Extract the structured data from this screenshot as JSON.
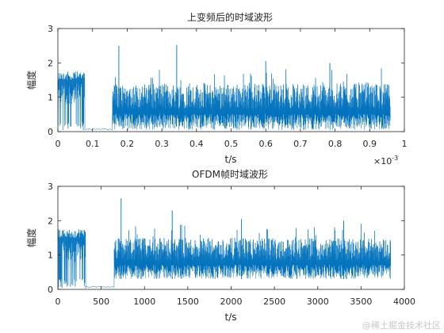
{
  "chart_data": [
    {
      "type": "line",
      "title": "上变频后的时域波形",
      "xlabel": "t/s",
      "ylabel": "幅度",
      "xlim": [
        0,
        1
      ],
      "ylim": [
        0,
        3
      ],
      "x_scale_label": "×10",
      "x_scale_exp": "-3",
      "xticks": [
        "0",
        "0.1",
        "0.2",
        "0.3",
        "0.4",
        "0.5",
        "0.6",
        "0.7",
        "0.8",
        "0.9",
        "1"
      ],
      "yticks": [
        "0",
        "1",
        "2",
        "3"
      ],
      "grid": false,
      "color": "#0072BD",
      "segments": [
        {
          "x_start": 0.0,
          "x_end": 0.078,
          "kind": "preamble",
          "high": 1.75,
          "low": 0.0
        },
        {
          "x_start": 0.078,
          "x_end": 0.158,
          "kind": "gap",
          "level": 0.07
        },
        {
          "x_start": 0.158,
          "x_end": 0.96,
          "kind": "signal",
          "typical_low": 0.05,
          "typical_high": 1.4
        }
      ],
      "peaks": [
        {
          "x": 0.176,
          "y": 2.5
        },
        {
          "x": 0.343,
          "y": 2.52
        },
        {
          "x": 0.6,
          "y": 2.05
        },
        {
          "x": 0.785,
          "y": 2.0
        }
      ]
    },
    {
      "type": "line",
      "title": "OFDM帧时域波形",
      "xlabel": "t/s",
      "ylabel": "幅度",
      "xlim": [
        0,
        4000
      ],
      "ylim": [
        0,
        3
      ],
      "xticks": [
        "0",
        "500",
        "1000",
        "1500",
        "2000",
        "2500",
        "3000",
        "3500",
        "4000"
      ],
      "yticks": [
        "0",
        "1",
        "2",
        "3"
      ],
      "grid": false,
      "color": "#0072BD",
      "segments": [
        {
          "x_start": 0,
          "x_end": 320,
          "kind": "preamble",
          "high": 1.75,
          "low": 0.0
        },
        {
          "x_start": 320,
          "x_end": 650,
          "kind": "gap",
          "level": 0.07
        },
        {
          "x_start": 650,
          "x_end": 3840,
          "kind": "signal",
          "typical_low": 0.3,
          "typical_high": 1.5
        }
      ],
      "peaks": [
        {
          "x": 730,
          "y": 2.65
        },
        {
          "x": 1320,
          "y": 2.3
        },
        {
          "x": 2120,
          "y": 2.05
        },
        {
          "x": 3300,
          "y": 2.0
        }
      ]
    }
  ],
  "watermark": "@稀土掘金技术社区"
}
